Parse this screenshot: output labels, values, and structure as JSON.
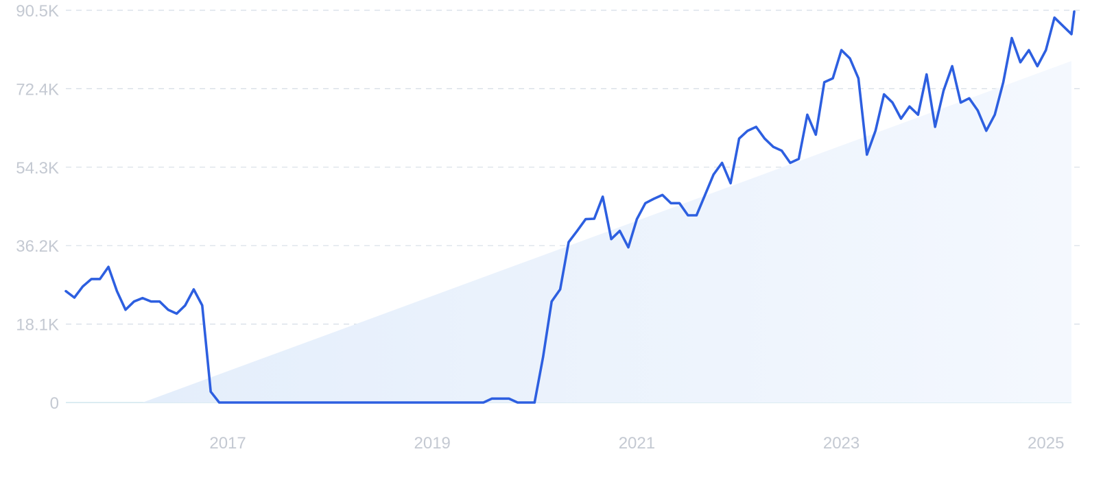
{
  "chart_data": {
    "type": "line",
    "title": "",
    "xlabel": "",
    "ylabel": "",
    "ylim": [
      0,
      90500
    ],
    "xlim": [
      "2015-06",
      "2025-04"
    ],
    "y_ticks": [
      {
        "value": 0,
        "label": "0"
      },
      {
        "value": 18100,
        "label": "18.1K"
      },
      {
        "value": 36200,
        "label": "36.2K"
      },
      {
        "value": 54300,
        "label": "54.3K"
      },
      {
        "value": 72400,
        "label": "72.4K"
      },
      {
        "value": 90500,
        "label": "90.5K"
      }
    ],
    "x_ticks": [
      {
        "value": "2017-01",
        "label": "2017"
      },
      {
        "value": "2019-01",
        "label": "2019"
      },
      {
        "value": "2021-01",
        "label": "2021"
      },
      {
        "value": "2023-01",
        "label": "2023"
      },
      {
        "value": "2025-01",
        "label": "2025"
      }
    ],
    "grid": true,
    "legend": "none",
    "colors": {
      "line": "#2d5fe0",
      "trend_fill": "#e6f0fb",
      "grid": "#d5dde6",
      "tick_text": "#c4c9d2"
    },
    "trend": {
      "start": [
        "2016-03",
        0
      ],
      "end": [
        "2025-04",
        78800
      ]
    },
    "series": [
      {
        "points": [
          [
            "2015-06",
            25700
          ],
          [
            "2015-07",
            24200
          ],
          [
            "2015-08",
            26800
          ],
          [
            "2015-09",
            28500
          ],
          [
            "2015-10",
            28500
          ],
          [
            "2015-11",
            31300
          ],
          [
            "2015-12",
            25700
          ],
          [
            "2016-01",
            21400
          ],
          [
            "2016-02",
            23300
          ],
          [
            "2016-03",
            24100
          ],
          [
            "2016-04",
            23300
          ],
          [
            "2016-05",
            23300
          ],
          [
            "2016-06",
            21400
          ],
          [
            "2016-07",
            20500
          ],
          [
            "2016-08",
            22400
          ],
          [
            "2016-09",
            26100
          ],
          [
            "2016-10",
            22400
          ],
          [
            "2016-11",
            2500
          ],
          [
            "2016-12",
            0
          ],
          [
            "2017-01",
            0
          ],
          [
            "2017-02",
            0
          ],
          [
            "2017-03",
            0
          ],
          [
            "2017-04",
            0
          ],
          [
            "2017-05",
            0
          ],
          [
            "2017-06",
            0
          ],
          [
            "2017-07",
            0
          ],
          [
            "2017-08",
            0
          ],
          [
            "2017-09",
            0
          ],
          [
            "2017-10",
            0
          ],
          [
            "2017-11",
            0
          ],
          [
            "2017-12",
            0
          ],
          [
            "2018-01",
            0
          ],
          [
            "2018-02",
            0
          ],
          [
            "2018-03",
            0
          ],
          [
            "2018-04",
            0
          ],
          [
            "2018-05",
            0
          ],
          [
            "2018-06",
            0
          ],
          [
            "2018-07",
            0
          ],
          [
            "2018-08",
            0
          ],
          [
            "2018-09",
            0
          ],
          [
            "2018-10",
            0
          ],
          [
            "2018-11",
            0
          ],
          [
            "2018-12",
            0
          ],
          [
            "2019-01",
            0
          ],
          [
            "2019-02",
            0
          ],
          [
            "2019-03",
            0
          ],
          [
            "2019-04",
            0
          ],
          [
            "2019-05",
            0
          ],
          [
            "2019-06",
            0
          ],
          [
            "2019-07",
            0
          ],
          [
            "2019-08",
            900
          ],
          [
            "2019-09",
            900
          ],
          [
            "2019-10",
            900
          ],
          [
            "2019-11",
            0
          ],
          [
            "2019-12",
            0
          ],
          [
            "2020-01",
            0
          ],
          [
            "2020-02",
            10500
          ],
          [
            "2020-03",
            23300
          ],
          [
            "2020-04",
            26100
          ],
          [
            "2020-05",
            37000
          ],
          [
            "2020-06",
            39600
          ],
          [
            "2020-07",
            42300
          ],
          [
            "2020-08",
            42400
          ],
          [
            "2020-09",
            47500
          ],
          [
            "2020-10",
            37700
          ],
          [
            "2020-11",
            39600
          ],
          [
            "2020-12",
            35800
          ],
          [
            "2021-01",
            42300
          ],
          [
            "2021-02",
            46000
          ],
          [
            "2021-03",
            47000
          ],
          [
            "2021-04",
            47900
          ],
          [
            "2021-05",
            46000
          ],
          [
            "2021-06",
            46000
          ],
          [
            "2021-07",
            43200
          ],
          [
            "2021-08",
            43200
          ],
          [
            "2021-09",
            47900
          ],
          [
            "2021-10",
            52600
          ],
          [
            "2021-11",
            55300
          ],
          [
            "2021-12",
            50600
          ],
          [
            "2022-01",
            60900
          ],
          [
            "2022-02",
            62700
          ],
          [
            "2022-03",
            63600
          ],
          [
            "2022-04",
            60900
          ],
          [
            "2022-05",
            59000
          ],
          [
            "2022-06",
            58100
          ],
          [
            "2022-07",
            55300
          ],
          [
            "2022-08",
            56200
          ],
          [
            "2022-09",
            66400
          ],
          [
            "2022-10",
            61800
          ],
          [
            "2022-11",
            73900
          ],
          [
            "2022-12",
            74800
          ],
          [
            "2023-01",
            81300
          ],
          [
            "2023-02",
            79400
          ],
          [
            "2023-03",
            74800
          ],
          [
            "2023-04",
            57200
          ],
          [
            "2023-05",
            62700
          ],
          [
            "2023-06",
            71100
          ],
          [
            "2023-07",
            69200
          ],
          [
            "2023-08",
            65500
          ],
          [
            "2023-09",
            68300
          ],
          [
            "2023-10",
            66400
          ],
          [
            "2023-11",
            75700
          ],
          [
            "2023-12",
            63600
          ],
          [
            "2024-01",
            72000
          ],
          [
            "2024-02",
            77600
          ],
          [
            "2024-03",
            69200
          ],
          [
            "2024-04",
            70200
          ],
          [
            "2024-05",
            67400
          ],
          [
            "2024-06",
            62700
          ],
          [
            "2024-07",
            66400
          ],
          [
            "2024-08",
            73900
          ],
          [
            "2024-09",
            84100
          ],
          [
            "2024-10",
            78500
          ],
          [
            "2024-11",
            81300
          ],
          [
            "2024-12",
            77600
          ],
          [
            "2025-01",
            81300
          ],
          [
            "2025-02",
            88800
          ],
          [
            "2025-03",
            86900
          ],
          [
            "2025-04",
            85000
          ],
          [
            "2025-05",
            90200
          ]
        ]
      }
    ]
  }
}
